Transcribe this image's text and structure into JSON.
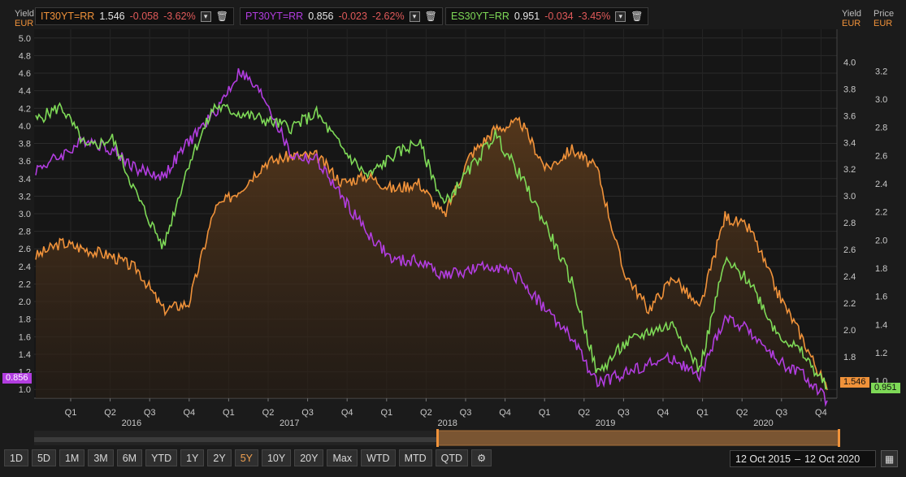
{
  "legend": [
    {
      "ric": "IT30YT=RR",
      "last": "1.546",
      "chg": "-0.058",
      "pct": "-3.62%",
      "color": "#f0923a"
    },
    {
      "ric": "PT30YT=RR",
      "last": "0.856",
      "chg": "-0.023",
      "pct": "-2.62%",
      "color": "#b23de0"
    },
    {
      "ric": "ES30YT=RR",
      "last": "0.951",
      "chg": "-0.034",
      "pct": "-3.45%",
      "color": "#7ed957"
    }
  ],
  "left_axis": {
    "label": "Yield",
    "unit": "EUR",
    "ticks": [
      "5.0",
      "4.8",
      "4.6",
      "4.4",
      "4.2",
      "4.0",
      "3.8",
      "3.6",
      "3.4",
      "3.2",
      "3.0",
      "2.8",
      "2.6",
      "2.4",
      "2.2",
      "2.0",
      "1.8",
      "1.6",
      "1.4",
      "1.2",
      "1.0"
    ]
  },
  "mid_axis": {
    "label": "Yield",
    "unit": "EUR",
    "ticks": [
      "4.0",
      "3.8",
      "3.6",
      "3.4",
      "3.2",
      "3.0",
      "2.8",
      "2.6",
      "2.4",
      "2.2",
      "2.0",
      "1.8",
      "1.6"
    ]
  },
  "right_axis": {
    "label": "Price",
    "unit": "EUR",
    "ticks": [
      "3.2",
      "3.0",
      "2.8",
      "2.6",
      "2.4",
      "2.2",
      "2.0",
      "1.8",
      "1.6",
      "1.4",
      "1.2",
      "1.0"
    ]
  },
  "flags": {
    "left": "0.856",
    "it": "1.546",
    "es": "0.951"
  },
  "x_axis": {
    "quarters": [
      "Q1",
      "Q2",
      "Q3",
      "Q4",
      "Q1",
      "Q2",
      "Q3",
      "Q4",
      "Q1",
      "Q2",
      "Q3",
      "Q4",
      "Q1",
      "Q2",
      "Q3",
      "Q4",
      "Q1",
      "Q2",
      "Q3",
      "Q4"
    ],
    "years": [
      "2016",
      "2017",
      "2018",
      "2019",
      "2020"
    ]
  },
  "toolbar": {
    "buttons": [
      "1D",
      "5D",
      "1M",
      "3M",
      "6M",
      "YTD",
      "1Y",
      "2Y",
      "5Y",
      "10Y",
      "20Y",
      "Max",
      "WTD",
      "MTD",
      "QTD"
    ],
    "active": "5Y"
  },
  "date_range": {
    "from": "12 Oct 2015",
    "sep": "–",
    "to": "12 Oct 2020"
  },
  "chart_data": {
    "type": "line",
    "title": "",
    "x": [
      "2015-10",
      "2015-12",
      "2016-02",
      "2016-04",
      "2016-06",
      "2016-08",
      "2016-10",
      "2016-12",
      "2017-02",
      "2017-04",
      "2017-06",
      "2017-08",
      "2017-10",
      "2017-12",
      "2018-02",
      "2018-04",
      "2018-06",
      "2018-08",
      "2018-10",
      "2018-12",
      "2019-02",
      "2019-04",
      "2019-06",
      "2019-08",
      "2019-10",
      "2019-12",
      "2020-02",
      "2020-03",
      "2020-04",
      "2020-06",
      "2020-08",
      "2020-10"
    ],
    "series": [
      {
        "name": "IT30YT=RR",
        "axis": "mid",
        "values": [
          2.55,
          2.65,
          2.6,
          2.55,
          2.45,
          2.15,
          2.2,
          2.9,
          3.05,
          3.25,
          3.3,
          3.3,
          3.1,
          3.15,
          3.05,
          3.1,
          2.85,
          3.3,
          3.5,
          3.55,
          3.2,
          3.35,
          3.2,
          2.45,
          2.15,
          2.4,
          2.15,
          2.85,
          2.75,
          2.3,
          1.95,
          1.55
        ],
        "color": "#f0923a"
      },
      {
        "name": "PT30YT=RR",
        "axis": "right",
        "values": [
          2.5,
          2.6,
          2.72,
          2.64,
          2.5,
          2.45,
          2.7,
          2.9,
          3.2,
          3.0,
          2.6,
          2.57,
          2.3,
          2.05,
          1.85,
          1.85,
          1.75,
          1.78,
          1.82,
          1.72,
          1.5,
          1.3,
          0.98,
          1.05,
          1.12,
          1.16,
          1.02,
          1.45,
          1.35,
          1.15,
          1.05,
          0.86
        ],
        "color": "#b23de0"
      },
      {
        "name": "ES30YT=RR",
        "axis": "right",
        "values": [
          2.85,
          2.95,
          2.65,
          2.72,
          2.3,
          1.95,
          2.55,
          2.95,
          2.9,
          2.85,
          2.8,
          2.9,
          2.65,
          2.45,
          2.6,
          2.7,
          2.25,
          2.5,
          2.75,
          2.45,
          2.1,
          1.7,
          1.05,
          1.25,
          1.35,
          1.4,
          1.08,
          1.85,
          1.7,
          1.35,
          1.2,
          0.95
        ],
        "color": "#7ed957"
      }
    ]
  }
}
